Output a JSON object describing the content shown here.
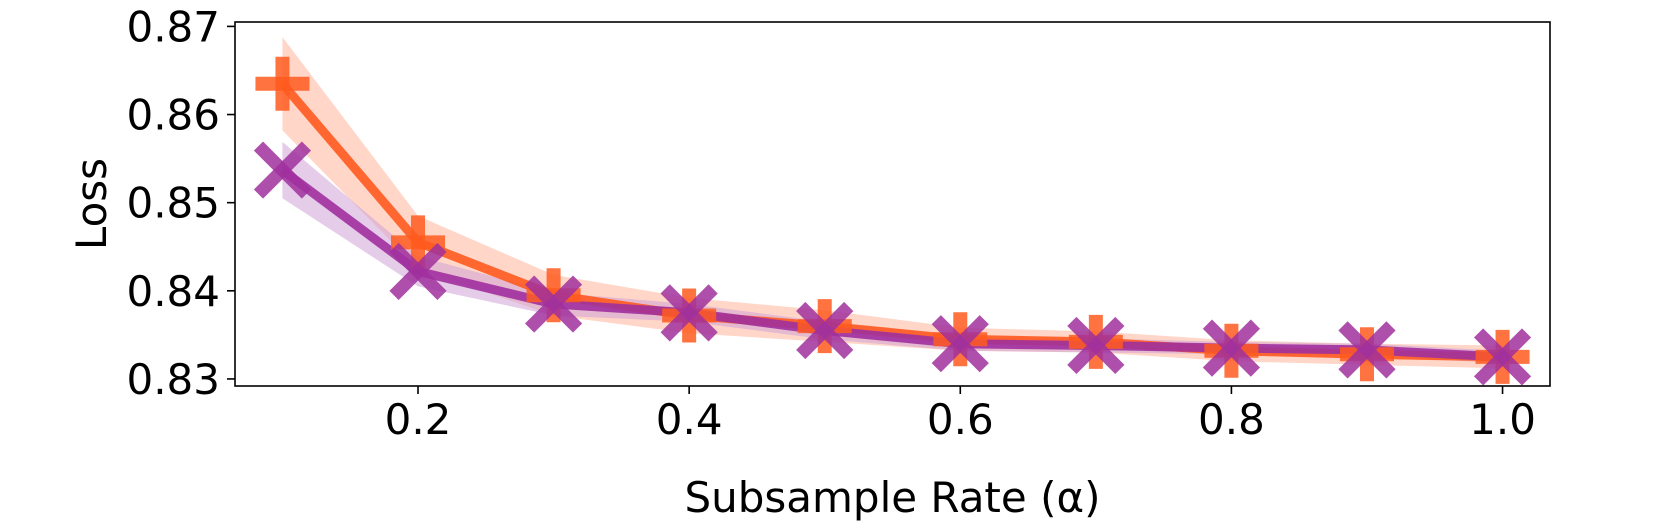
{
  "chart_data": {
    "type": "line",
    "title": "",
    "xlabel": "Subsample Rate (α)",
    "ylabel": "Loss",
    "x": [
      0.1,
      0.2,
      0.3,
      0.4,
      0.5,
      0.6,
      0.7,
      0.8,
      0.9,
      1.0
    ],
    "xlim": [
      0.065,
      1.035
    ],
    "ylim": [
      0.8292,
      0.8705
    ],
    "xticks": [
      0.2,
      0.4,
      0.6,
      0.8,
      1.0
    ],
    "xtick_labels": [
      "0.2",
      "0.4",
      "0.6",
      "0.8",
      "1.0"
    ],
    "yticks": [
      0.83,
      0.84,
      0.85,
      0.86,
      0.87
    ],
    "ytick_labels": [
      "0.83",
      "0.84",
      "0.85",
      "0.86",
      "0.87"
    ],
    "grid": false,
    "legend": "none",
    "series": [
      {
        "marker": "plus",
        "color": "#ff5a1f",
        "band_color": "#ffb59a",
        "values": [
          0.8635,
          0.8455,
          0.8395,
          0.8372,
          0.836,
          0.8345,
          0.8342,
          0.8332,
          0.8328,
          0.8325
        ],
        "lower": [
          0.8582,
          0.8425,
          0.8372,
          0.8352,
          0.8342,
          0.8332,
          0.833,
          0.832,
          0.8316,
          0.8312
        ],
        "upper": [
          0.8688,
          0.8485,
          0.8418,
          0.8392,
          0.8378,
          0.8358,
          0.8354,
          0.8344,
          0.834,
          0.8338
        ]
      },
      {
        "marker": "x",
        "color": "#a0309e",
        "band_color": "#cfa3d6",
        "values": [
          0.8537,
          0.8422,
          0.8385,
          0.8375,
          0.8355,
          0.834,
          0.8338,
          0.8335,
          0.8333,
          0.8325
        ],
        "lower": [
          0.8505,
          0.8405,
          0.8372,
          0.8365,
          0.8345,
          0.8332,
          0.833,
          0.8328,
          0.8326,
          0.8318
        ],
        "upper": [
          0.8569,
          0.8439,
          0.8398,
          0.8385,
          0.8365,
          0.8348,
          0.8346,
          0.8342,
          0.834,
          0.8332
        ]
      }
    ]
  }
}
